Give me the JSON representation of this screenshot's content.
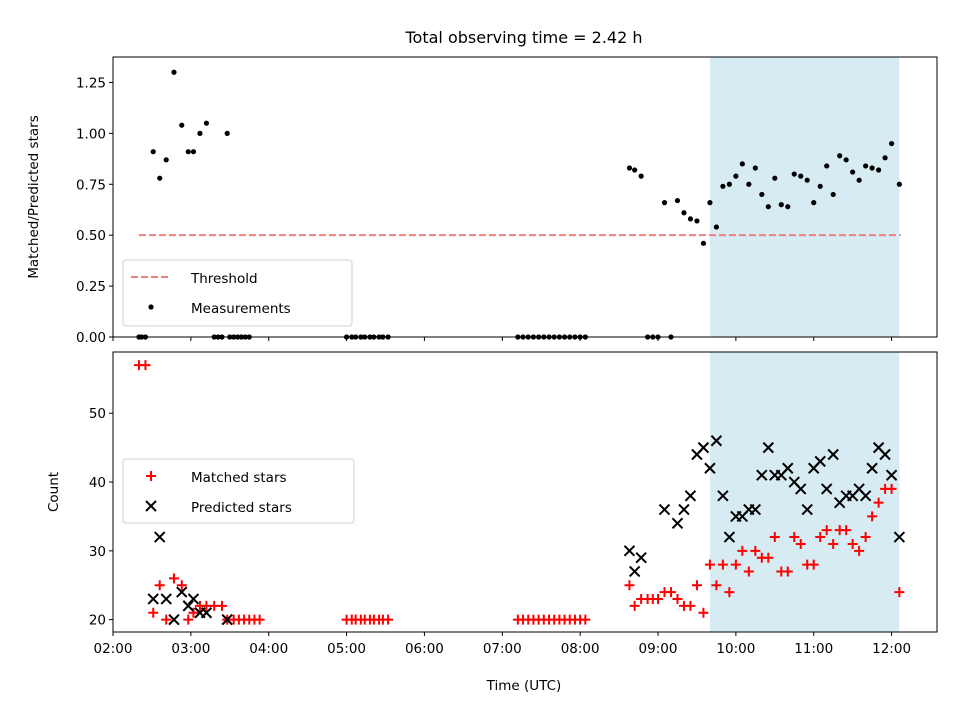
{
  "title": "Total observing time = 2.42 h",
  "colors": {
    "highlight": "#add8e6",
    "threshold": "#f08080",
    "measurement": "#000000",
    "matched": "#ff0000",
    "predicted": "#000000"
  },
  "chart_data": [
    {
      "type": "scatter",
      "ylabel": "Matched/Predicted stars",
      "xlim": [
        "02:00",
        "12:35"
      ],
      "ylim": [
        0,
        1.375
      ],
      "yticks": [
        "0.00",
        "0.25",
        "0.50",
        "0.75",
        "1.00",
        "1.25"
      ],
      "highlight_range": [
        "09:40",
        "12:06"
      ],
      "threshold": {
        "name": "Threshold",
        "value": 0.5,
        "x": [
          "02:20",
          "12:07"
        ]
      },
      "legend": {
        "placement": "lower left",
        "entries": [
          "Threshold",
          "Measurements"
        ]
      },
      "series": [
        {
          "name": "Measurements",
          "points": [
            [
              "02:20",
              0
            ],
            [
              "02:22",
              0
            ],
            [
              "02:25",
              0
            ],
            [
              "02:31",
              0.91
            ],
            [
              "02:36",
              0.78
            ],
            [
              "02:41",
              0.87
            ],
            [
              "02:47",
              1.3
            ],
            [
              "02:53",
              1.04
            ],
            [
              "02:58",
              0.91
            ],
            [
              "03:02",
              0.91
            ],
            [
              "03:07",
              1.0
            ],
            [
              "03:12",
              1.05
            ],
            [
              "03:28",
              1.0
            ],
            [
              "03:18",
              0
            ],
            [
              "03:21",
              0
            ],
            [
              "03:24",
              0
            ],
            [
              "03:30",
              0
            ],
            [
              "03:33",
              0
            ],
            [
              "03:36",
              0
            ],
            [
              "03:39",
              0
            ],
            [
              "03:42",
              0
            ],
            [
              "03:45",
              0
            ],
            [
              "05:00",
              0
            ],
            [
              "05:04",
              0
            ],
            [
              "05:07",
              0
            ],
            [
              "05:11",
              0
            ],
            [
              "05:14",
              0
            ],
            [
              "05:18",
              0
            ],
            [
              "05:21",
              0
            ],
            [
              "05:25",
              0
            ],
            [
              "05:28",
              0
            ],
            [
              "05:32",
              0
            ],
            [
              "07:12",
              0
            ],
            [
              "07:16",
              0
            ],
            [
              "07:20",
              0
            ],
            [
              "07:24",
              0
            ],
            [
              "07:28",
              0
            ],
            [
              "07:32",
              0
            ],
            [
              "07:36",
              0
            ],
            [
              "07:40",
              0
            ],
            [
              "07:44",
              0
            ],
            [
              "07:48",
              0
            ],
            [
              "07:52",
              0
            ],
            [
              "07:56",
              0
            ],
            [
              "08:00",
              0
            ],
            [
              "08:04",
              0
            ],
            [
              "08:38",
              0.83
            ],
            [
              "08:42",
              0.82
            ],
            [
              "08:47",
              0.79
            ],
            [
              "08:52",
              0
            ],
            [
              "08:56",
              0
            ],
            [
              "09:00",
              0
            ],
            [
              "09:10",
              0
            ],
            [
              "09:05",
              0.66
            ],
            [
              "09:15",
              0.67
            ],
            [
              "09:20",
              0.61
            ],
            [
              "09:25",
              0.58
            ],
            [
              "09:30",
              0.57
            ],
            [
              "09:35",
              0.46
            ],
            [
              "09:40",
              0.66
            ],
            [
              "09:45",
              0.54
            ],
            [
              "09:50",
              0.74
            ],
            [
              "09:55",
              0.75
            ],
            [
              "10:00",
              0.79
            ],
            [
              "10:05",
              0.85
            ],
            [
              "10:10",
              0.75
            ],
            [
              "10:15",
              0.83
            ],
            [
              "10:20",
              0.7
            ],
            [
              "10:25",
              0.64
            ],
            [
              "10:30",
              0.78
            ],
            [
              "10:35",
              0.65
            ],
            [
              "10:40",
              0.64
            ],
            [
              "10:45",
              0.8
            ],
            [
              "10:50",
              0.79
            ],
            [
              "10:55",
              0.77
            ],
            [
              "11:00",
              0.66
            ],
            [
              "11:05",
              0.74
            ],
            [
              "11:10",
              0.84
            ],
            [
              "11:15",
              0.7
            ],
            [
              "11:20",
              0.89
            ],
            [
              "11:25",
              0.87
            ],
            [
              "11:30",
              0.81
            ],
            [
              "11:35",
              0.77
            ],
            [
              "11:40",
              0.84
            ],
            [
              "11:45",
              0.83
            ],
            [
              "11:50",
              0.82
            ],
            [
              "11:55",
              0.88
            ],
            [
              "12:00",
              0.95
            ],
            [
              "12:06",
              0.75
            ]
          ]
        }
      ]
    },
    {
      "type": "scatter",
      "xlabel": "Time (UTC)",
      "ylabel": "Count",
      "xlim": [
        "02:00",
        "12:35"
      ],
      "ylim": [
        18.2,
        58.9
      ],
      "xticks": [
        "02:00",
        "03:00",
        "04:00",
        "05:00",
        "06:00",
        "07:00",
        "08:00",
        "09:00",
        "10:00",
        "11:00",
        "12:00"
      ],
      "yticks": [
        "20",
        "30",
        "40",
        "50"
      ],
      "highlight_range": [
        "09:40",
        "12:06"
      ],
      "legend": {
        "placement": "center left",
        "entries": [
          "Matched stars",
          "Predicted stars"
        ]
      },
      "series": [
        {
          "name": "Matched stars",
          "marker": "+",
          "points": [
            [
              "02:20",
              57
            ],
            [
              "02:25",
              57
            ],
            [
              "02:31",
              21
            ],
            [
              "02:36",
              25
            ],
            [
              "02:41",
              20
            ],
            [
              "02:47",
              26
            ],
            [
              "02:53",
              25
            ],
            [
              "02:58",
              20
            ],
            [
              "03:02",
              21
            ],
            [
              "03:07",
              22
            ],
            [
              "03:12",
              22
            ],
            [
              "03:18",
              22
            ],
            [
              "03:24",
              22
            ],
            [
              "03:28",
              20
            ],
            [
              "03:33",
              20
            ],
            [
              "03:37",
              20
            ],
            [
              "03:41",
              20
            ],
            [
              "03:45",
              20
            ],
            [
              "03:49",
              20
            ],
            [
              "03:53",
              20
            ],
            [
              "05:00",
              20
            ],
            [
              "05:04",
              20
            ],
            [
              "05:07",
              20
            ],
            [
              "05:11",
              20
            ],
            [
              "05:14",
              20
            ],
            [
              "05:18",
              20
            ],
            [
              "05:21",
              20
            ],
            [
              "05:25",
              20
            ],
            [
              "05:28",
              20
            ],
            [
              "05:32",
              20
            ],
            [
              "07:12",
              20
            ],
            [
              "07:16",
              20
            ],
            [
              "07:20",
              20
            ],
            [
              "07:24",
              20
            ],
            [
              "07:28",
              20
            ],
            [
              "07:32",
              20
            ],
            [
              "07:36",
              20
            ],
            [
              "07:40",
              20
            ],
            [
              "07:44",
              20
            ],
            [
              "07:48",
              20
            ],
            [
              "07:52",
              20
            ],
            [
              "07:56",
              20
            ],
            [
              "08:00",
              20
            ],
            [
              "08:04",
              20
            ],
            [
              "08:38",
              25
            ],
            [
              "08:42",
              22
            ],
            [
              "08:47",
              23
            ],
            [
              "08:52",
              23
            ],
            [
              "08:56",
              23
            ],
            [
              "09:00",
              23
            ],
            [
              "09:05",
              24
            ],
            [
              "09:10",
              24
            ],
            [
              "09:15",
              23
            ],
            [
              "09:20",
              22
            ],
            [
              "09:25",
              22
            ],
            [
              "09:30",
              25
            ],
            [
              "09:35",
              21
            ],
            [
              "09:40",
              28
            ],
            [
              "09:45",
              25
            ],
            [
              "09:50",
              28
            ],
            [
              "09:55",
              24
            ],
            [
              "10:00",
              28
            ],
            [
              "10:05",
              30
            ],
            [
              "10:10",
              27
            ],
            [
              "10:15",
              30
            ],
            [
              "10:20",
              29
            ],
            [
              "10:25",
              29
            ],
            [
              "10:30",
              32
            ],
            [
              "10:35",
              27
            ],
            [
              "10:40",
              27
            ],
            [
              "10:45",
              32
            ],
            [
              "10:50",
              31
            ],
            [
              "10:55",
              28
            ],
            [
              "11:00",
              28
            ],
            [
              "11:05",
              32
            ],
            [
              "11:10",
              33
            ],
            [
              "11:15",
              31
            ],
            [
              "11:20",
              33
            ],
            [
              "11:25",
              33
            ],
            [
              "11:30",
              31
            ],
            [
              "11:35",
              30
            ],
            [
              "11:40",
              32
            ],
            [
              "11:45",
              35
            ],
            [
              "11:50",
              37
            ],
            [
              "11:55",
              39
            ],
            [
              "12:00",
              39
            ],
            [
              "12:06",
              24
            ]
          ]
        },
        {
          "name": "Predicted stars",
          "marker": "x",
          "points": [
            [
              "02:31",
              23
            ],
            [
              "02:36",
              32
            ],
            [
              "02:41",
              23
            ],
            [
              "02:47",
              20
            ],
            [
              "02:53",
              24
            ],
            [
              "02:58",
              22
            ],
            [
              "03:02",
              23
            ],
            [
              "03:07",
              21
            ],
            [
              "03:12",
              21
            ],
            [
              "03:28",
              20
            ],
            [
              "08:38",
              30
            ],
            [
              "08:42",
              27
            ],
            [
              "08:47",
              29
            ],
            [
              "09:05",
              36
            ],
            [
              "09:15",
              34
            ],
            [
              "09:20",
              36
            ],
            [
              "09:25",
              38
            ],
            [
              "09:30",
              44
            ],
            [
              "09:35",
              45
            ],
            [
              "09:40",
              42
            ],
            [
              "09:45",
              46
            ],
            [
              "09:50",
              38
            ],
            [
              "09:55",
              32
            ],
            [
              "10:00",
              35
            ],
            [
              "10:05",
              35
            ],
            [
              "10:10",
              36
            ],
            [
              "10:15",
              36
            ],
            [
              "10:20",
              41
            ],
            [
              "10:25",
              45
            ],
            [
              "10:30",
              41
            ],
            [
              "10:35",
              41
            ],
            [
              "10:40",
              42
            ],
            [
              "10:45",
              40
            ],
            [
              "10:50",
              39
            ],
            [
              "10:55",
              36
            ],
            [
              "11:00",
              42
            ],
            [
              "11:05",
              43
            ],
            [
              "11:10",
              39
            ],
            [
              "11:15",
              44
            ],
            [
              "11:20",
              37
            ],
            [
              "11:25",
              38
            ],
            [
              "11:30",
              38
            ],
            [
              "11:35",
              39
            ],
            [
              "11:40",
              38
            ],
            [
              "11:45",
              42
            ],
            [
              "11:50",
              45
            ],
            [
              "11:55",
              44
            ],
            [
              "12:00",
              41
            ],
            [
              "12:06",
              32
            ]
          ]
        }
      ]
    }
  ]
}
